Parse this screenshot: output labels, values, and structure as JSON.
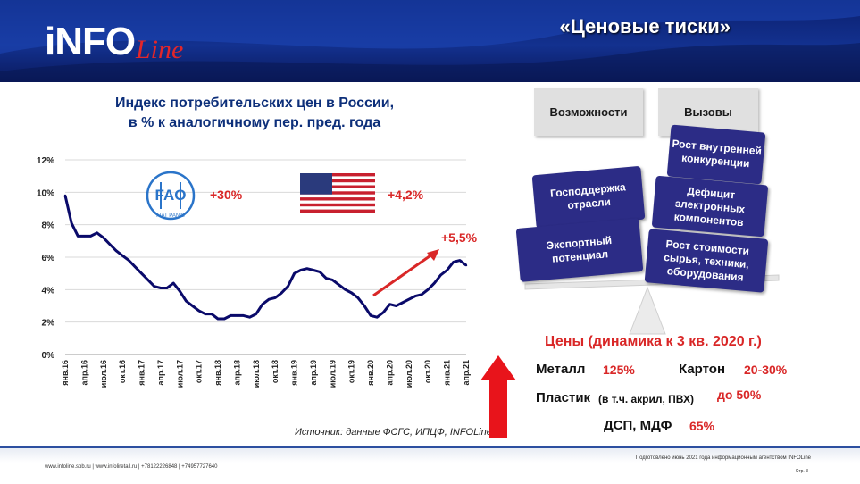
{
  "header": {
    "logo_main": "iNFO",
    "logo_script": "Line",
    "slide_title": "«Ценовые тиски»"
  },
  "chart_title_line1": "Индекс потребительских цен в России,",
  "chart_title_line2": "в % к аналогичному пер. пред. года",
  "annotations": {
    "fao_change": "+30%",
    "fao_emblem_text": "FIAT PANIS",
    "fao_letters": "FAO",
    "usa_change": "+4,2%",
    "trend_change": "+5,5%"
  },
  "source": "Источник: данные ФСГС, ИПЦФ, INFOLine",
  "colors": {
    "line": "#0a0a6a",
    "accent_red": "#d92727",
    "box_navy": "#2c2c86",
    "header_blue": "#13318f"
  },
  "chart_data": {
    "type": "line",
    "ylabel": "",
    "ylim": [
      0,
      12
    ],
    "yticks": [
      "0%",
      "2%",
      "4%",
      "6%",
      "8%",
      "10%",
      "12%"
    ],
    "grid": true,
    "xticks": [
      "янв.16",
      "апр.16",
      "июл.16",
      "окт.16",
      "янв.17",
      "апр.17",
      "июл.17",
      "окт.17",
      "янв.18",
      "апр.18",
      "июл.18",
      "окт.18",
      "янв.19",
      "апр.19",
      "июл.19",
      "окт.19",
      "янв.20",
      "апр.20",
      "июл.20",
      "окт.20",
      "янв.21",
      "апр.21"
    ],
    "series": [
      {
        "values": [
          9.8,
          8.1,
          7.3,
          7.3,
          7.3,
          7.5,
          7.2,
          6.8,
          6.4,
          6.1,
          5.8,
          5.4,
          5.0,
          4.6,
          4.2,
          4.1,
          4.1,
          4.4,
          3.9,
          3.3,
          3.0,
          2.7,
          2.5,
          2.5,
          2.2,
          2.2,
          2.4,
          2.4,
          2.4,
          2.3,
          2.5,
          3.1,
          3.4,
          3.5,
          3.8,
          4.2,
          5.0,
          5.2,
          5.3,
          5.2,
          5.1,
          4.7,
          4.6,
          4.3,
          4.0,
          3.8,
          3.5,
          3.0,
          2.4,
          2.3,
          2.6,
          3.1,
          3.0,
          3.2,
          3.4,
          3.6,
          3.7,
          4.0,
          4.4,
          4.9,
          5.2,
          5.7,
          5.8,
          5.5
        ]
      }
    ]
  },
  "scale": {
    "opportunities_label": "Возможности",
    "challenges_label": "Вызовы",
    "left_boxes": [
      "Господдержка отрасли",
      "Экспортный потенциал"
    ],
    "right_boxes": [
      "Рост внутренней конкуренции",
      "Дефицит электронных компонентов",
      "Рост стоимости сырья, техники, оборудования"
    ]
  },
  "prices": {
    "title": "Цены (динамика  к 3 кв. 2020 г.)",
    "metal_label": "Металл",
    "metal_value": "125%",
    "carton_label": "Картон",
    "carton_value": "20-30%",
    "plastic_label": "Пластик",
    "plastic_note": "(в т.ч. акрил, ПВХ)",
    "plastic_value": "до 50%",
    "dsp_label": "ДСП, МДФ",
    "dsp_value": "65%"
  },
  "footer": {
    "left": "www.infoline.spb.ru | www.infoliretail.ru | +78122226848  | +74957727640",
    "right": "Подготовлено июнь 2021 года информационным агентством INFOLine",
    "page": "Стр. 3"
  }
}
